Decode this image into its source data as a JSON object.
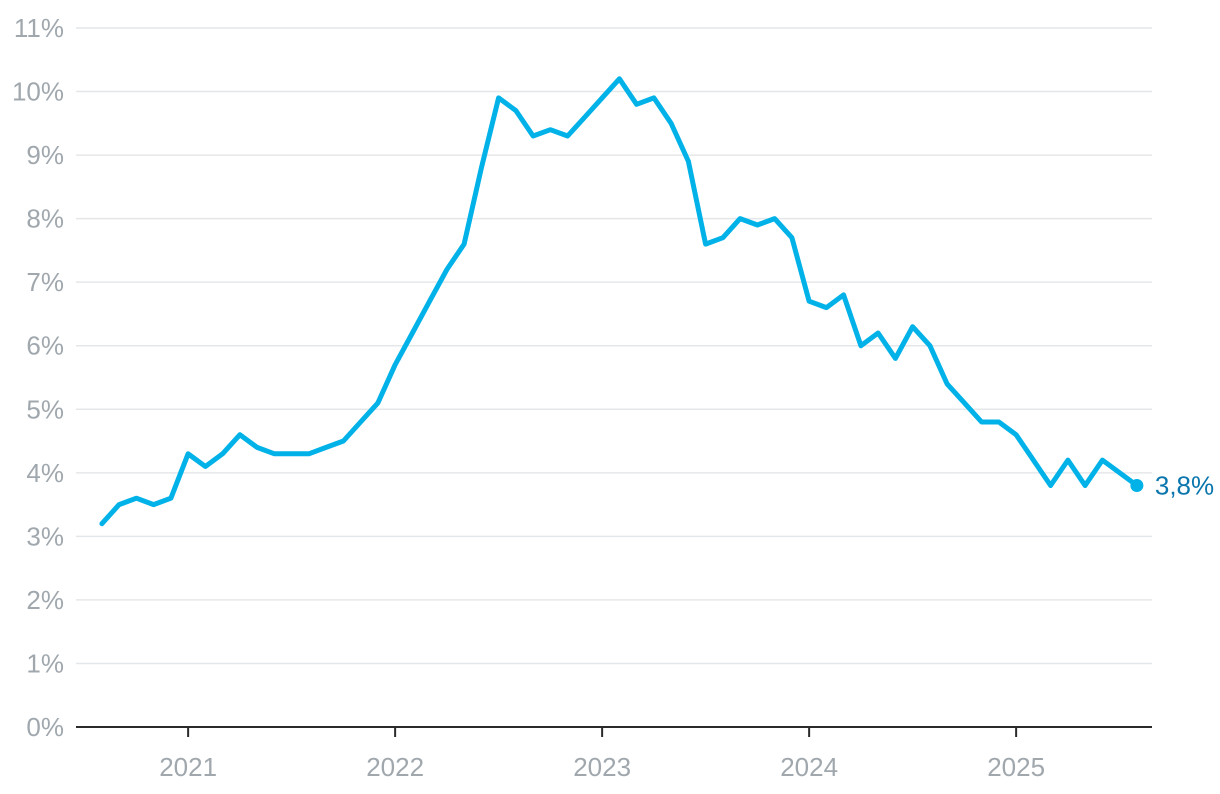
{
  "chart_data": {
    "type": "line",
    "title": "",
    "xlabel": "",
    "ylabel": "",
    "x_tick_labels": [
      "2021",
      "2022",
      "2023",
      "2024",
      "2025"
    ],
    "y_tick_labels": [
      "0%",
      "1%",
      "2%",
      "3%",
      "4%",
      "5%",
      "6%",
      "7%",
      "8%",
      "9%",
      "10%",
      "11%"
    ],
    "ylim": [
      0,
      11
    ],
    "xlim": [
      "2020-06",
      "2025-09"
    ],
    "grid": "horizontal",
    "line_color": "#00b2e8",
    "end_label_color": "#0a76ad",
    "end_label": "3,8%",
    "series": [
      {
        "x": [
          "2020-08",
          "2020-09",
          "2020-10",
          "2020-11",
          "2020-12",
          "2021-01",
          "2021-02",
          "2021-03",
          "2021-04",
          "2021-05",
          "2021-06",
          "2021-07",
          "2021-08",
          "2021-09",
          "2021-10",
          "2021-11",
          "2021-12",
          "2022-01",
          "2022-02",
          "2022-03",
          "2022-04",
          "2022-05",
          "2022-06",
          "2022-07",
          "2022-08",
          "2022-09",
          "2022-10",
          "2022-11",
          "2022-12",
          "2023-01",
          "2023-02",
          "2023-03",
          "2023-04",
          "2023-05",
          "2023-06",
          "2023-07",
          "2023-08",
          "2023-09",
          "2023-10",
          "2023-11",
          "2023-12",
          "2024-01",
          "2024-02",
          "2024-03",
          "2024-04",
          "2024-05",
          "2024-06",
          "2024-07",
          "2024-08",
          "2024-09",
          "2024-10",
          "2024-11",
          "2024-12",
          "2025-01",
          "2025-02",
          "2025-03",
          "2025-04",
          "2025-05",
          "2025-06",
          "2025-07",
          "2025-08"
        ],
        "values": [
          3.2,
          3.5,
          3.6,
          3.5,
          3.6,
          4.3,
          4.1,
          4.3,
          4.6,
          4.4,
          4.3,
          4.3,
          4.3,
          4.4,
          4.5,
          4.8,
          5.1,
          5.7,
          6.2,
          6.7,
          7.2,
          7.6,
          8.8,
          9.9,
          9.7,
          9.3,
          9.4,
          9.3,
          9.6,
          9.9,
          10.2,
          9.8,
          9.9,
          9.5,
          8.9,
          7.6,
          7.7,
          8.0,
          7.9,
          8.0,
          7.7,
          6.7,
          6.6,
          6.8,
          6.0,
          6.2,
          5.8,
          6.3,
          6.0,
          5.4,
          5.1,
          4.8,
          4.8,
          4.6,
          4.2,
          3.8,
          4.2,
          3.8,
          4.2,
          4.0,
          3.8
        ]
      }
    ]
  }
}
